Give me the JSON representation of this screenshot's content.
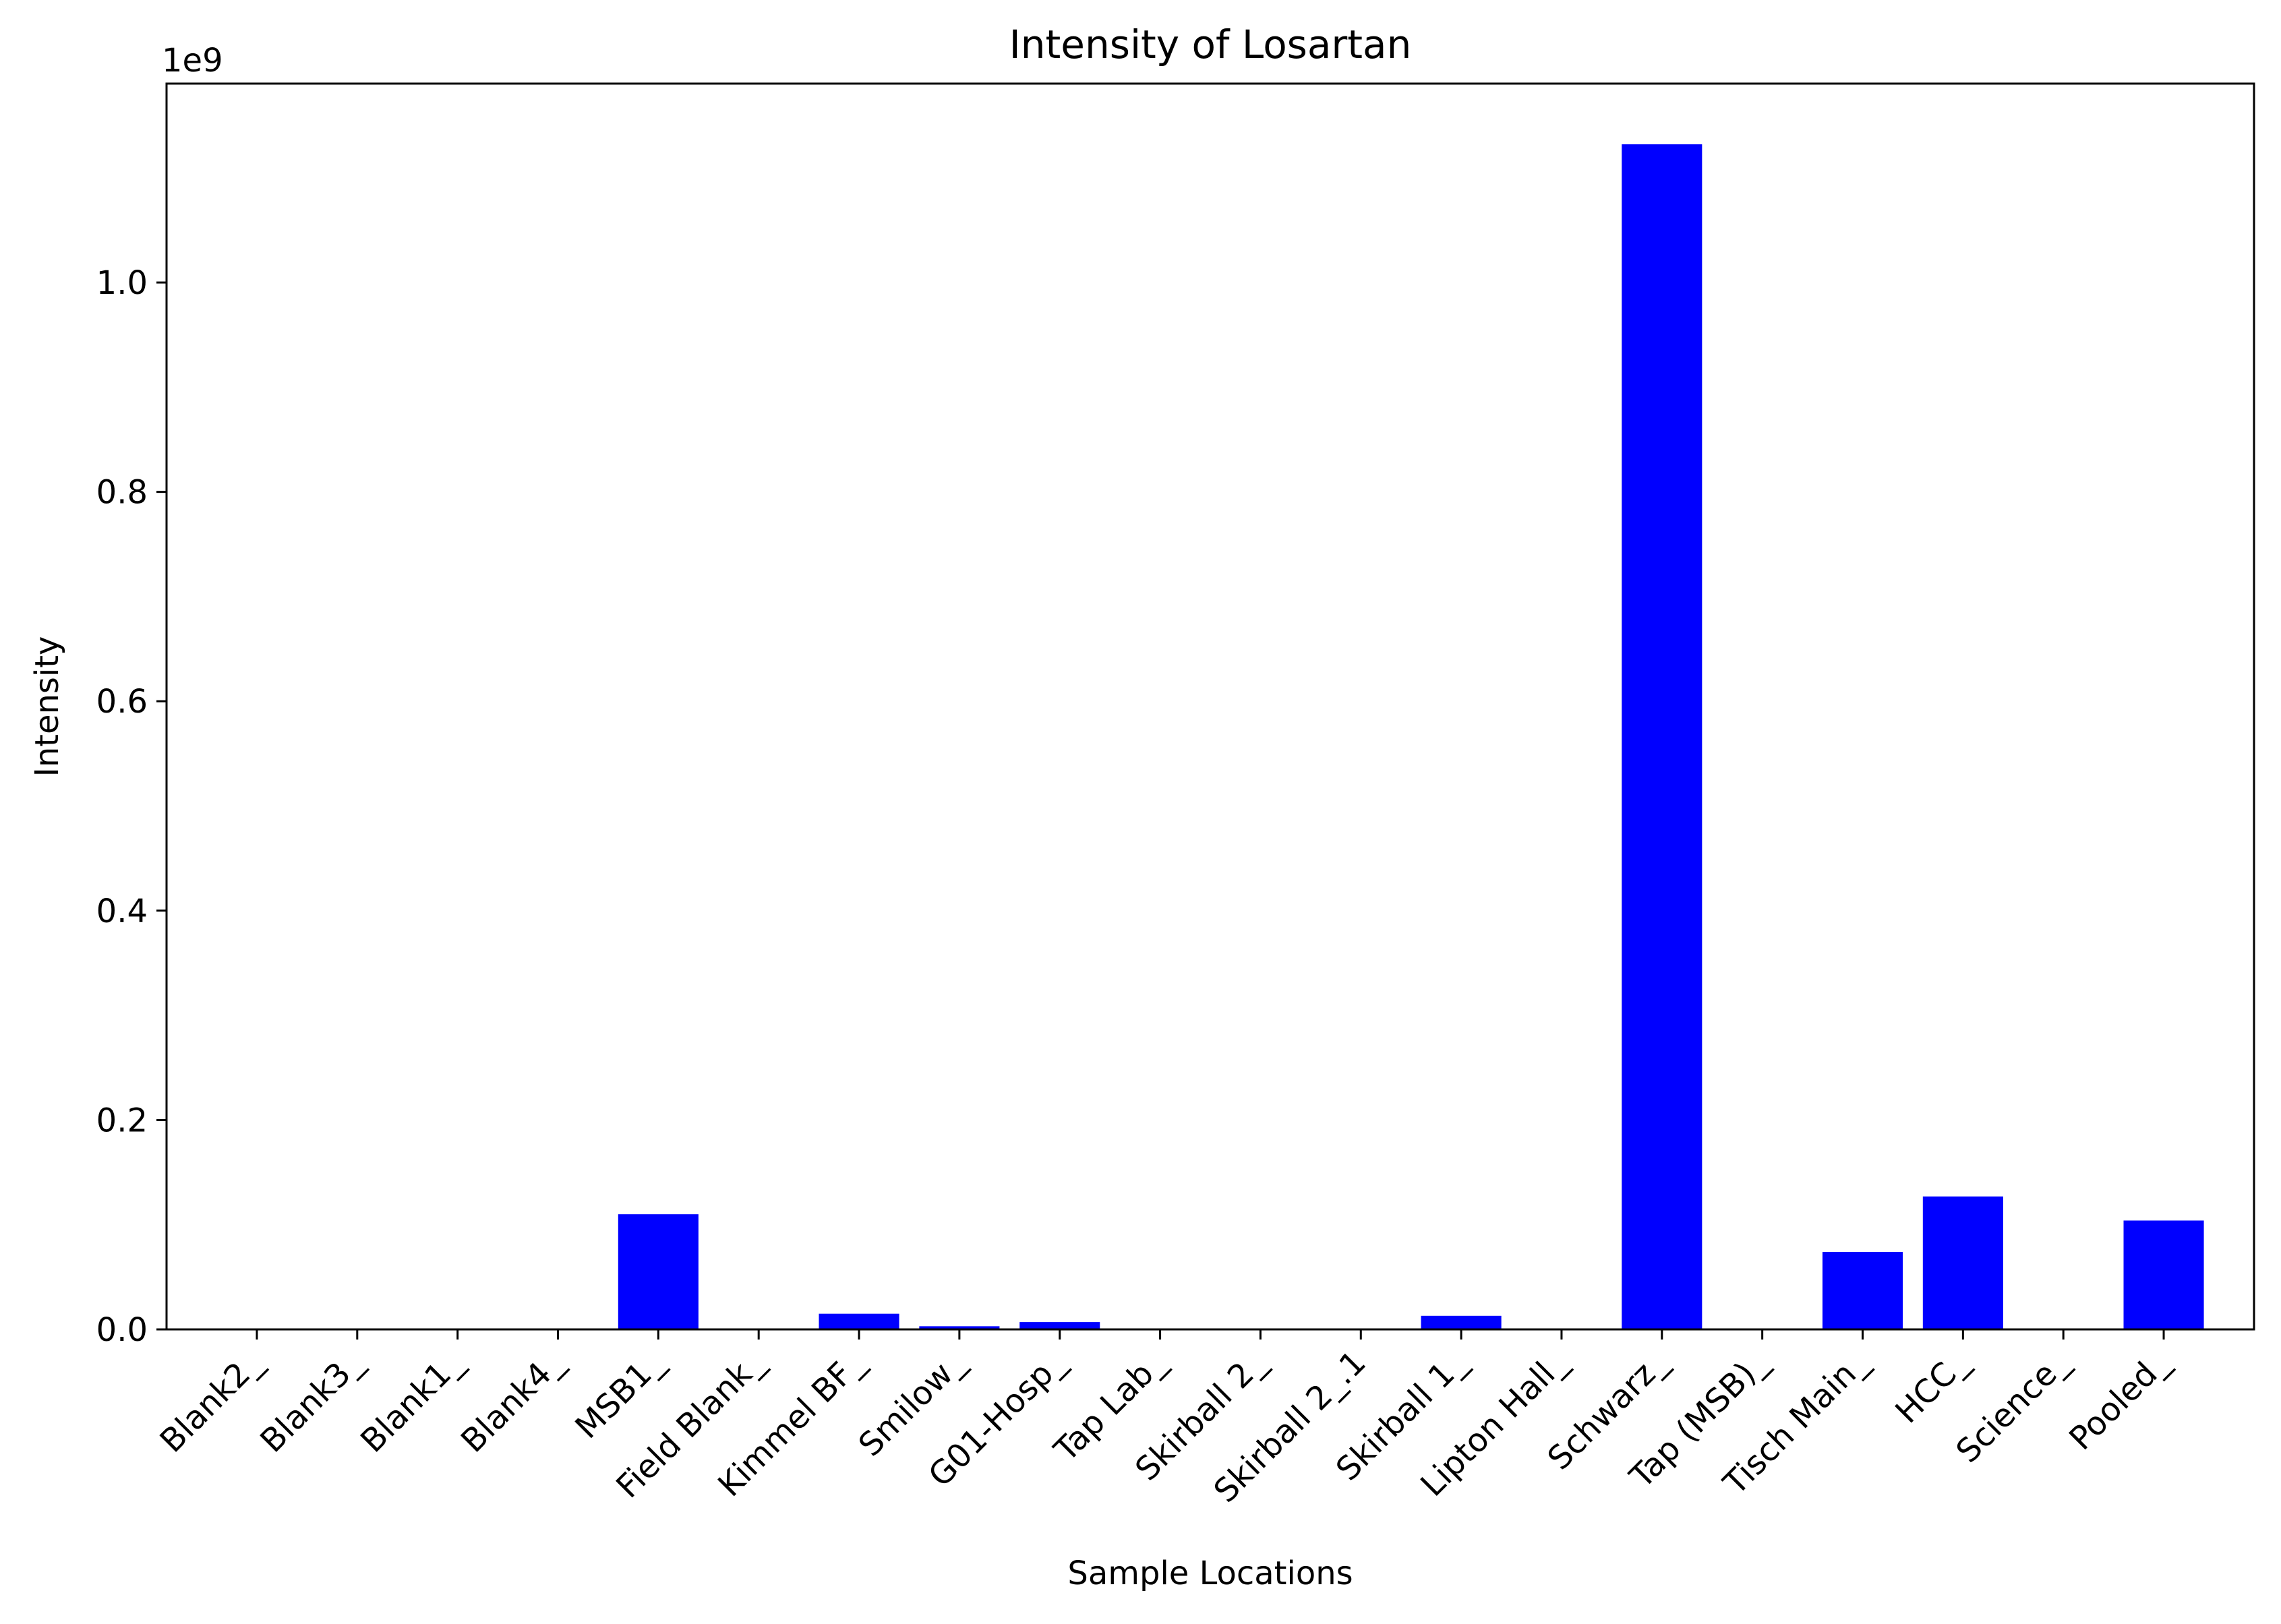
{
  "chart_data": {
    "type": "bar",
    "title": "Intensity of Losartan",
    "xlabel": "Sample Locations",
    "ylabel": "Intensity",
    "offset_text": "1e9",
    "categories": [
      "Blank2_",
      "Blank3_",
      "Blank1_",
      "Blank4_",
      "MSB1_",
      "Field Blank_",
      "Kimmel BF_",
      "Smilow_",
      "G01-Hosp_",
      "Tap Lab_",
      "Skirball 2_",
      "Skirball 2_.1",
      "Skirball 1_",
      "Lipton Hall_",
      "Schwarz_",
      "Tap (MSB)_",
      "Tisch Main_",
      "HCC_",
      "Science_",
      "Pooled_"
    ],
    "values": [
      0,
      0,
      0,
      0,
      110000000,
      0,
      15000000,
      3000000,
      7000000,
      0,
      0,
      0,
      13000000,
      0,
      1132000000,
      0,
      74000000,
      127000000,
      0,
      104000000
    ],
    "ylim": [
      0,
      1190000000
    ],
    "yticks": [
      0,
      200000000,
      400000000,
      600000000,
      800000000,
      1000000000
    ],
    "ytick_labels": [
      "0.0",
      "0.2",
      "0.4",
      "0.6",
      "0.8",
      "1.0"
    ],
    "bar_color": "#0000ff",
    "grid": false,
    "legend": "none"
  }
}
